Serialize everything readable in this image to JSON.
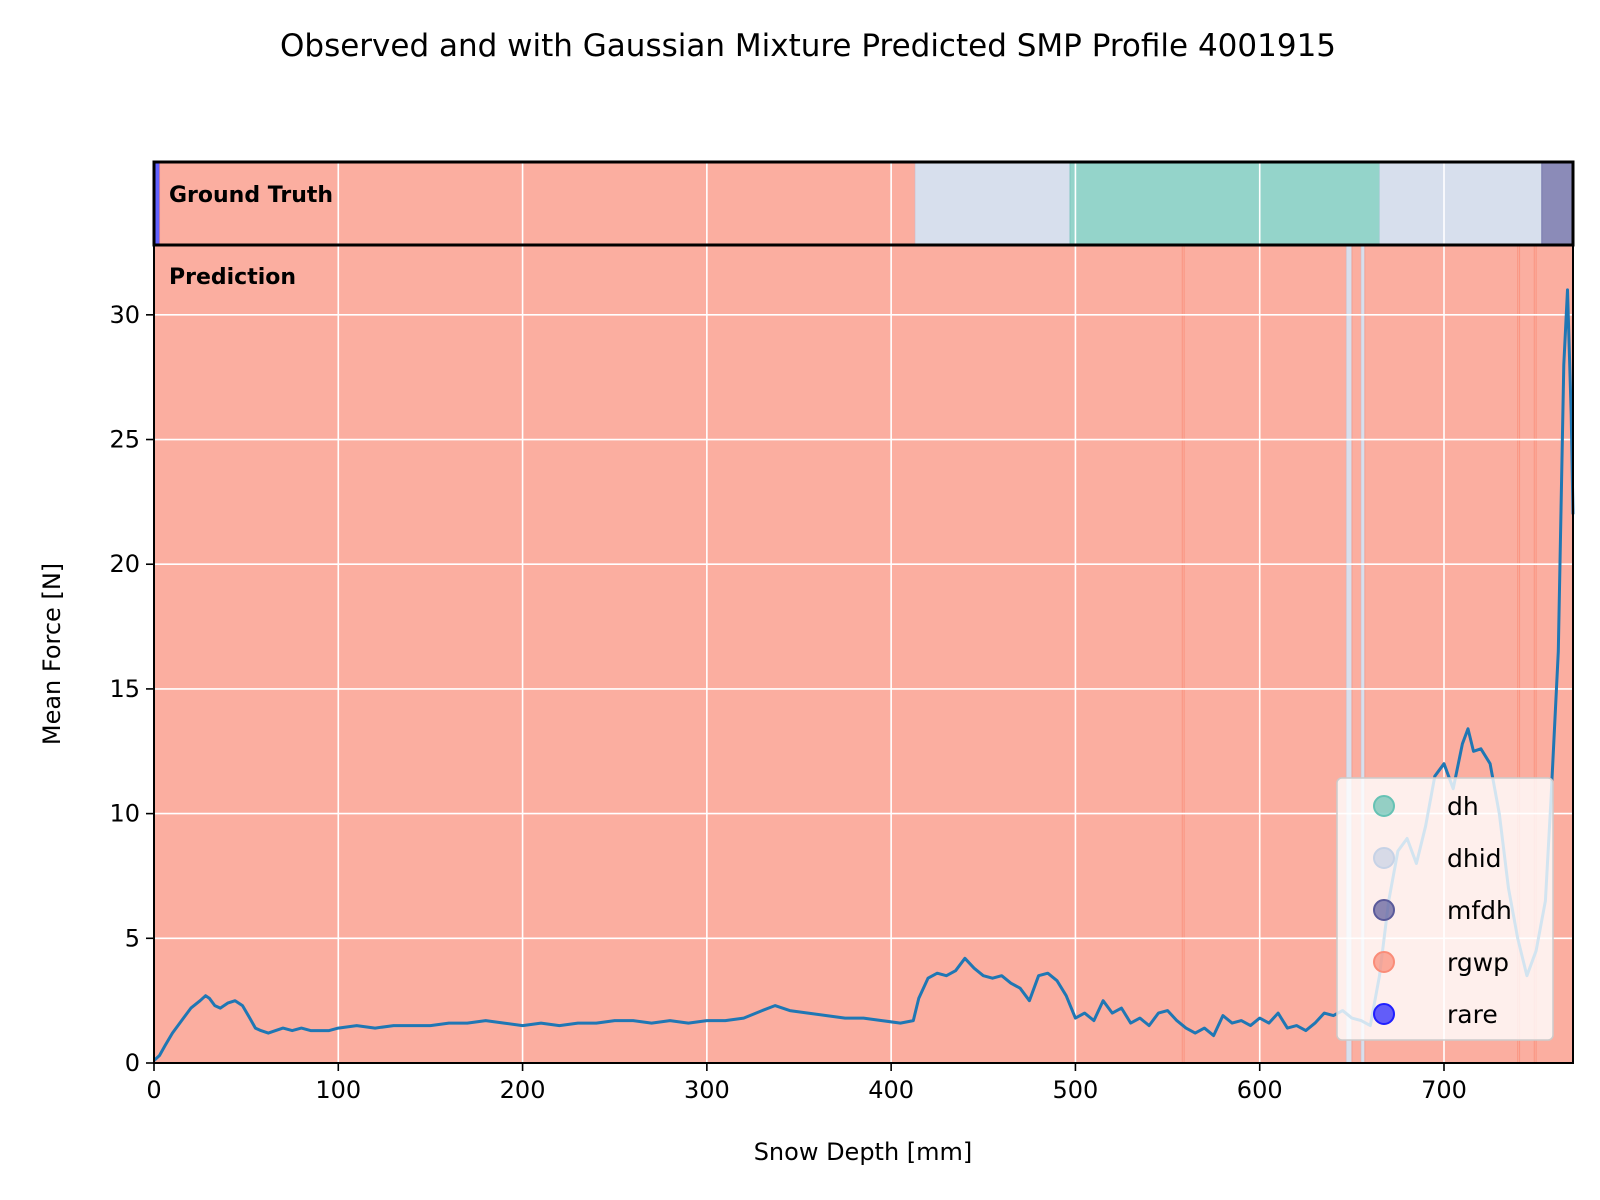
{
  "chart_data": {
    "type": "line",
    "title": "Observed and with Gaussian Mixture Predicted SMP Profile 4001915",
    "xlabel": "Snow Depth [mm]",
    "ylabel": "Mean Force [N]",
    "xlim": [
      0,
      770
    ],
    "ylim": [
      0,
      32.8
    ],
    "xticks": [
      0,
      100,
      200,
      300,
      400,
      500,
      600,
      700
    ],
    "yticks": [
      0,
      5,
      10,
      15,
      20,
      25,
      30
    ],
    "grid": true,
    "line_color": "#1f77b4",
    "band_labels": {
      "ground_truth": "Ground Truth",
      "prediction": "Prediction"
    },
    "label_colors": {
      "dh": "#66c2b4",
      "dhid": "#c6d2e6",
      "mfdh": "#5a5a9a",
      "rgwp": "#fa8c78",
      "rare": "#2020ff"
    },
    "ground_truth": [
      {
        "label": "rare",
        "start": 0,
        "end": 3
      },
      {
        "label": "rgwp",
        "start": 3,
        "end": 413
      },
      {
        "label": "dhid",
        "start": 413,
        "end": 497
      },
      {
        "label": "dh",
        "start": 497,
        "end": 665
      },
      {
        "label": "dhid",
        "start": 665,
        "end": 753
      },
      {
        "label": "mfdh",
        "start": 753,
        "end": 770
      }
    ],
    "prediction": [
      {
        "label": "rgwp",
        "start": 0,
        "end": 558
      },
      {
        "label": "rgwp",
        "start": 558,
        "end": 559
      },
      {
        "label": "rgwp",
        "start": 559,
        "end": 647
      },
      {
        "label": "dhid",
        "start": 647,
        "end": 650
      },
      {
        "label": "rgwp",
        "start": 650,
        "end": 655
      },
      {
        "label": "dhid",
        "start": 655,
        "end": 657
      },
      {
        "label": "rgwp",
        "start": 657,
        "end": 740
      },
      {
        "label": "rgwp",
        "start": 740,
        "end": 741
      },
      {
        "label": "rgwp",
        "start": 741,
        "end": 749
      },
      {
        "label": "rgwp",
        "start": 749,
        "end": 750
      },
      {
        "label": "rgwp",
        "start": 750,
        "end": 770
      }
    ],
    "legend": {
      "position": "lower right",
      "entries": [
        "dh",
        "dhid",
        "mfdh",
        "rgwp",
        "rare"
      ]
    },
    "series": [
      {
        "x": [
          0,
          3,
          6,
          10,
          15,
          20,
          25,
          28,
          30,
          33,
          36,
          40,
          44,
          48,
          52,
          55,
          58,
          62,
          66,
          70,
          75,
          80,
          85,
          90,
          95,
          100,
          110,
          120,
          130,
          140,
          150,
          160,
          170,
          180,
          190,
          200,
          210,
          220,
          230,
          240,
          250,
          260,
          270,
          280,
          290,
          300,
          310,
          320,
          330,
          337,
          345,
          355,
          365,
          375,
          385,
          395,
          405,
          412,
          415,
          420,
          425,
          430,
          435,
          440,
          445,
          450,
          455,
          460,
          465,
          470,
          475,
          480,
          485,
          490,
          495,
          500,
          505,
          510,
          515,
          520,
          525,
          530,
          535,
          540,
          545,
          550,
          555,
          560,
          565,
          570,
          575,
          580,
          585,
          590,
          595,
          600,
          605,
          610,
          615,
          620,
          625,
          630,
          635,
          640,
          645,
          650,
          655,
          660,
          665,
          670,
          675,
          680,
          685,
          690,
          695,
          700,
          705,
          710,
          713,
          716,
          720,
          725,
          730,
          735,
          740,
          745,
          750,
          755,
          758,
          762,
          765,
          767,
          769,
          770
        ],
        "y": [
          0.1,
          0.3,
          0.7,
          1.2,
          1.7,
          2.2,
          2.5,
          2.7,
          2.6,
          2.3,
          2.2,
          2.4,
          2.5,
          2.3,
          1.8,
          1.4,
          1.3,
          1.2,
          1.3,
          1.4,
          1.3,
          1.4,
          1.3,
          1.3,
          1.3,
          1.4,
          1.5,
          1.4,
          1.5,
          1.5,
          1.5,
          1.6,
          1.6,
          1.7,
          1.6,
          1.5,
          1.6,
          1.5,
          1.6,
          1.6,
          1.7,
          1.7,
          1.6,
          1.7,
          1.6,
          1.7,
          1.7,
          1.8,
          2.1,
          2.3,
          2.1,
          2.0,
          1.9,
          1.8,
          1.8,
          1.7,
          1.6,
          1.7,
          2.6,
          3.4,
          3.6,
          3.5,
          3.7,
          4.2,
          3.8,
          3.5,
          3.4,
          3.5,
          3.2,
          3.0,
          2.5,
          3.5,
          3.6,
          3.3,
          2.7,
          1.8,
          2.0,
          1.7,
          2.5,
          2.0,
          2.2,
          1.6,
          1.8,
          1.5,
          2.0,
          2.1,
          1.7,
          1.4,
          1.2,
          1.4,
          1.1,
          1.9,
          1.6,
          1.7,
          1.5,
          1.8,
          1.6,
          2.0,
          1.4,
          1.5,
          1.3,
          1.6,
          2.0,
          1.9,
          2.1,
          1.8,
          1.7,
          1.5,
          3.5,
          6.5,
          8.5,
          9.0,
          8.0,
          9.5,
          11.5,
          12.0,
          11.0,
          12.8,
          13.4,
          12.5,
          12.6,
          12.0,
          10.0,
          7.0,
          5.0,
          3.5,
          4.5,
          6.5,
          10.5,
          16.5,
          28.0,
          31.0,
          26.0,
          22.0
        ]
      }
    ]
  }
}
